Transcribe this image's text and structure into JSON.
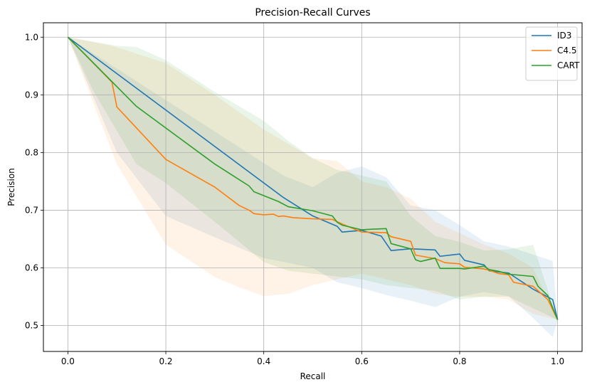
{
  "chart_data": {
    "type": "line",
    "title": "Precision-Recall Curves",
    "xlabel": "Recall",
    "ylabel": "Precision",
    "xlim": [
      -0.05,
      1.05
    ],
    "ylim": [
      0.455,
      1.025
    ],
    "xticks": [
      0.0,
      0.2,
      0.4,
      0.6,
      0.8,
      1.0
    ],
    "xtick_labels": [
      "0.0",
      "0.2",
      "0.4",
      "0.6",
      "0.8",
      "1.0"
    ],
    "yticks": [
      0.5,
      0.6,
      0.7,
      0.8,
      0.9,
      1.0
    ],
    "ytick_labels": [
      "0.5",
      "0.6",
      "0.7",
      "0.8",
      "0.9",
      "1.0"
    ],
    "grid": true,
    "legend_position": "top-right",
    "series": [
      {
        "name": "ID3",
        "color": "#1f77b4",
        "points": [
          [
            0.0,
            1.0
          ],
          [
            0.44,
            0.722
          ],
          [
            0.5,
            0.69
          ],
          [
            0.55,
            0.672
          ],
          [
            0.56,
            0.662
          ],
          [
            0.6,
            0.665
          ],
          [
            0.64,
            0.655
          ],
          [
            0.66,
            0.63
          ],
          [
            0.7,
            0.633
          ],
          [
            0.75,
            0.631
          ],
          [
            0.76,
            0.62
          ],
          [
            0.8,
            0.624
          ],
          [
            0.81,
            0.613
          ],
          [
            0.85,
            0.605
          ],
          [
            0.86,
            0.595
          ],
          [
            0.9,
            0.591
          ],
          [
            0.95,
            0.563
          ],
          [
            0.99,
            0.545
          ],
          [
            1.0,
            0.51
          ]
        ],
        "band_upper": [
          [
            0.0,
            1.0
          ],
          [
            0.44,
            0.76
          ],
          [
            0.5,
            0.74
          ],
          [
            0.55,
            0.765
          ],
          [
            0.6,
            0.776
          ],
          [
            0.65,
            0.757
          ],
          [
            0.7,
            0.708
          ],
          [
            0.75,
            0.7
          ],
          [
            0.8,
            0.674
          ],
          [
            0.85,
            0.646
          ],
          [
            0.9,
            0.637
          ],
          [
            0.95,
            0.623
          ],
          [
            0.99,
            0.612
          ],
          [
            1.0,
            0.51
          ]
        ],
        "band_lower": [
          [
            0.0,
            1.0
          ],
          [
            0.1,
            0.8
          ],
          [
            0.2,
            0.69
          ],
          [
            0.3,
            0.653
          ],
          [
            0.4,
            0.617
          ],
          [
            0.5,
            0.6
          ],
          [
            0.55,
            0.575
          ],
          [
            0.6,
            0.565
          ],
          [
            0.65,
            0.553
          ],
          [
            0.7,
            0.543
          ],
          [
            0.75,
            0.532
          ],
          [
            0.8,
            0.55
          ],
          [
            0.85,
            0.558
          ],
          [
            0.9,
            0.551
          ],
          [
            0.95,
            0.513
          ],
          [
            0.99,
            0.48
          ],
          [
            1.0,
            0.51
          ]
        ]
      },
      {
        "name": "C4.5",
        "color": "#ff7f0e",
        "points": [
          [
            0.0,
            1.0
          ],
          [
            0.09,
            0.922
          ],
          [
            0.1,
            0.879
          ],
          [
            0.2,
            0.788
          ],
          [
            0.3,
            0.74
          ],
          [
            0.35,
            0.708
          ],
          [
            0.37,
            0.7
          ],
          [
            0.38,
            0.694
          ],
          [
            0.4,
            0.692
          ],
          [
            0.42,
            0.693
          ],
          [
            0.43,
            0.689
          ],
          [
            0.44,
            0.69
          ],
          [
            0.46,
            0.687
          ],
          [
            0.5,
            0.685
          ],
          [
            0.54,
            0.684
          ],
          [
            0.56,
            0.676
          ],
          [
            0.6,
            0.662
          ],
          [
            0.65,
            0.661
          ],
          [
            0.66,
            0.654
          ],
          [
            0.7,
            0.646
          ],
          [
            0.71,
            0.622
          ],
          [
            0.75,
            0.616
          ],
          [
            0.77,
            0.609
          ],
          [
            0.8,
            0.607
          ],
          [
            0.81,
            0.601
          ],
          [
            0.85,
            0.598
          ],
          [
            0.86,
            0.596
          ],
          [
            0.88,
            0.59
          ],
          [
            0.9,
            0.588
          ],
          [
            0.91,
            0.575
          ],
          [
            0.95,
            0.568
          ],
          [
            0.98,
            0.545
          ],
          [
            1.0,
            0.51
          ]
        ],
        "band_upper": [
          [
            0.0,
            1.0
          ],
          [
            0.09,
            0.985
          ],
          [
            0.2,
            0.955
          ],
          [
            0.3,
            0.9
          ],
          [
            0.4,
            0.84
          ],
          [
            0.5,
            0.79
          ],
          [
            0.55,
            0.785
          ],
          [
            0.6,
            0.75
          ],
          [
            0.65,
            0.74
          ],
          [
            0.7,
            0.72
          ],
          [
            0.75,
            0.68
          ],
          [
            0.8,
            0.66
          ],
          [
            0.85,
            0.64
          ],
          [
            0.9,
            0.625
          ],
          [
            0.95,
            0.6
          ],
          [
            1.0,
            0.51
          ]
        ],
        "band_lower": [
          [
            0.0,
            1.0
          ],
          [
            0.1,
            0.78
          ],
          [
            0.2,
            0.64
          ],
          [
            0.3,
            0.584
          ],
          [
            0.35,
            0.566
          ],
          [
            0.4,
            0.551
          ],
          [
            0.45,
            0.555
          ],
          [
            0.5,
            0.57
          ],
          [
            0.55,
            0.58
          ],
          [
            0.6,
            0.59
          ],
          [
            0.65,
            0.58
          ],
          [
            0.7,
            0.57
          ],
          [
            0.75,
            0.555
          ],
          [
            0.8,
            0.55
          ],
          [
            0.85,
            0.55
          ],
          [
            0.9,
            0.545
          ],
          [
            0.95,
            0.52
          ],
          [
            1.0,
            0.51
          ]
        ]
      },
      {
        "name": "CART",
        "color": "#2ca02c",
        "points": [
          [
            0.0,
            1.0
          ],
          [
            0.14,
            0.88
          ],
          [
            0.3,
            0.78
          ],
          [
            0.37,
            0.742
          ],
          [
            0.38,
            0.732
          ],
          [
            0.43,
            0.715
          ],
          [
            0.45,
            0.706
          ],
          [
            0.5,
            0.699
          ],
          [
            0.54,
            0.69
          ],
          [
            0.55,
            0.679
          ],
          [
            0.56,
            0.674
          ],
          [
            0.6,
            0.666
          ],
          [
            0.62,
            0.667
          ],
          [
            0.65,
            0.668
          ],
          [
            0.66,
            0.642
          ],
          [
            0.7,
            0.633
          ],
          [
            0.71,
            0.614
          ],
          [
            0.72,
            0.611
          ],
          [
            0.75,
            0.617
          ],
          [
            0.76,
            0.599
          ],
          [
            0.8,
            0.599
          ],
          [
            0.81,
            0.598
          ],
          [
            0.85,
            0.603
          ],
          [
            0.86,
            0.597
          ],
          [
            0.88,
            0.594
          ],
          [
            0.9,
            0.589
          ],
          [
            0.95,
            0.585
          ],
          [
            0.96,
            0.568
          ],
          [
            0.98,
            0.552
          ],
          [
            1.0,
            0.51
          ]
        ],
        "band_upper": [
          [
            0.0,
            1.0
          ],
          [
            0.1,
            0.985
          ],
          [
            0.14,
            0.983
          ],
          [
            0.2,
            0.96
          ],
          [
            0.3,
            0.905
          ],
          [
            0.4,
            0.855
          ],
          [
            0.45,
            0.82
          ],
          [
            0.5,
            0.79
          ],
          [
            0.55,
            0.77
          ],
          [
            0.6,
            0.76
          ],
          [
            0.65,
            0.75
          ],
          [
            0.7,
            0.69
          ],
          [
            0.75,
            0.655
          ],
          [
            0.8,
            0.645
          ],
          [
            0.85,
            0.63
          ],
          [
            0.9,
            0.632
          ],
          [
            0.95,
            0.64
          ],
          [
            1.0,
            0.51
          ]
        ],
        "band_lower": [
          [
            0.0,
            1.0
          ],
          [
            0.05,
            0.91
          ],
          [
            0.14,
            0.78
          ],
          [
            0.2,
            0.747
          ],
          [
            0.3,
            0.68
          ],
          [
            0.4,
            0.61
          ],
          [
            0.45,
            0.595
          ],
          [
            0.5,
            0.59
          ],
          [
            0.55,
            0.585
          ],
          [
            0.6,
            0.58
          ],
          [
            0.65,
            0.57
          ],
          [
            0.7,
            0.565
          ],
          [
            0.75,
            0.56
          ],
          [
            0.8,
            0.545
          ],
          [
            0.85,
            0.55
          ],
          [
            0.9,
            0.55
          ],
          [
            0.95,
            0.53
          ],
          [
            1.0,
            0.51
          ]
        ]
      }
    ]
  }
}
